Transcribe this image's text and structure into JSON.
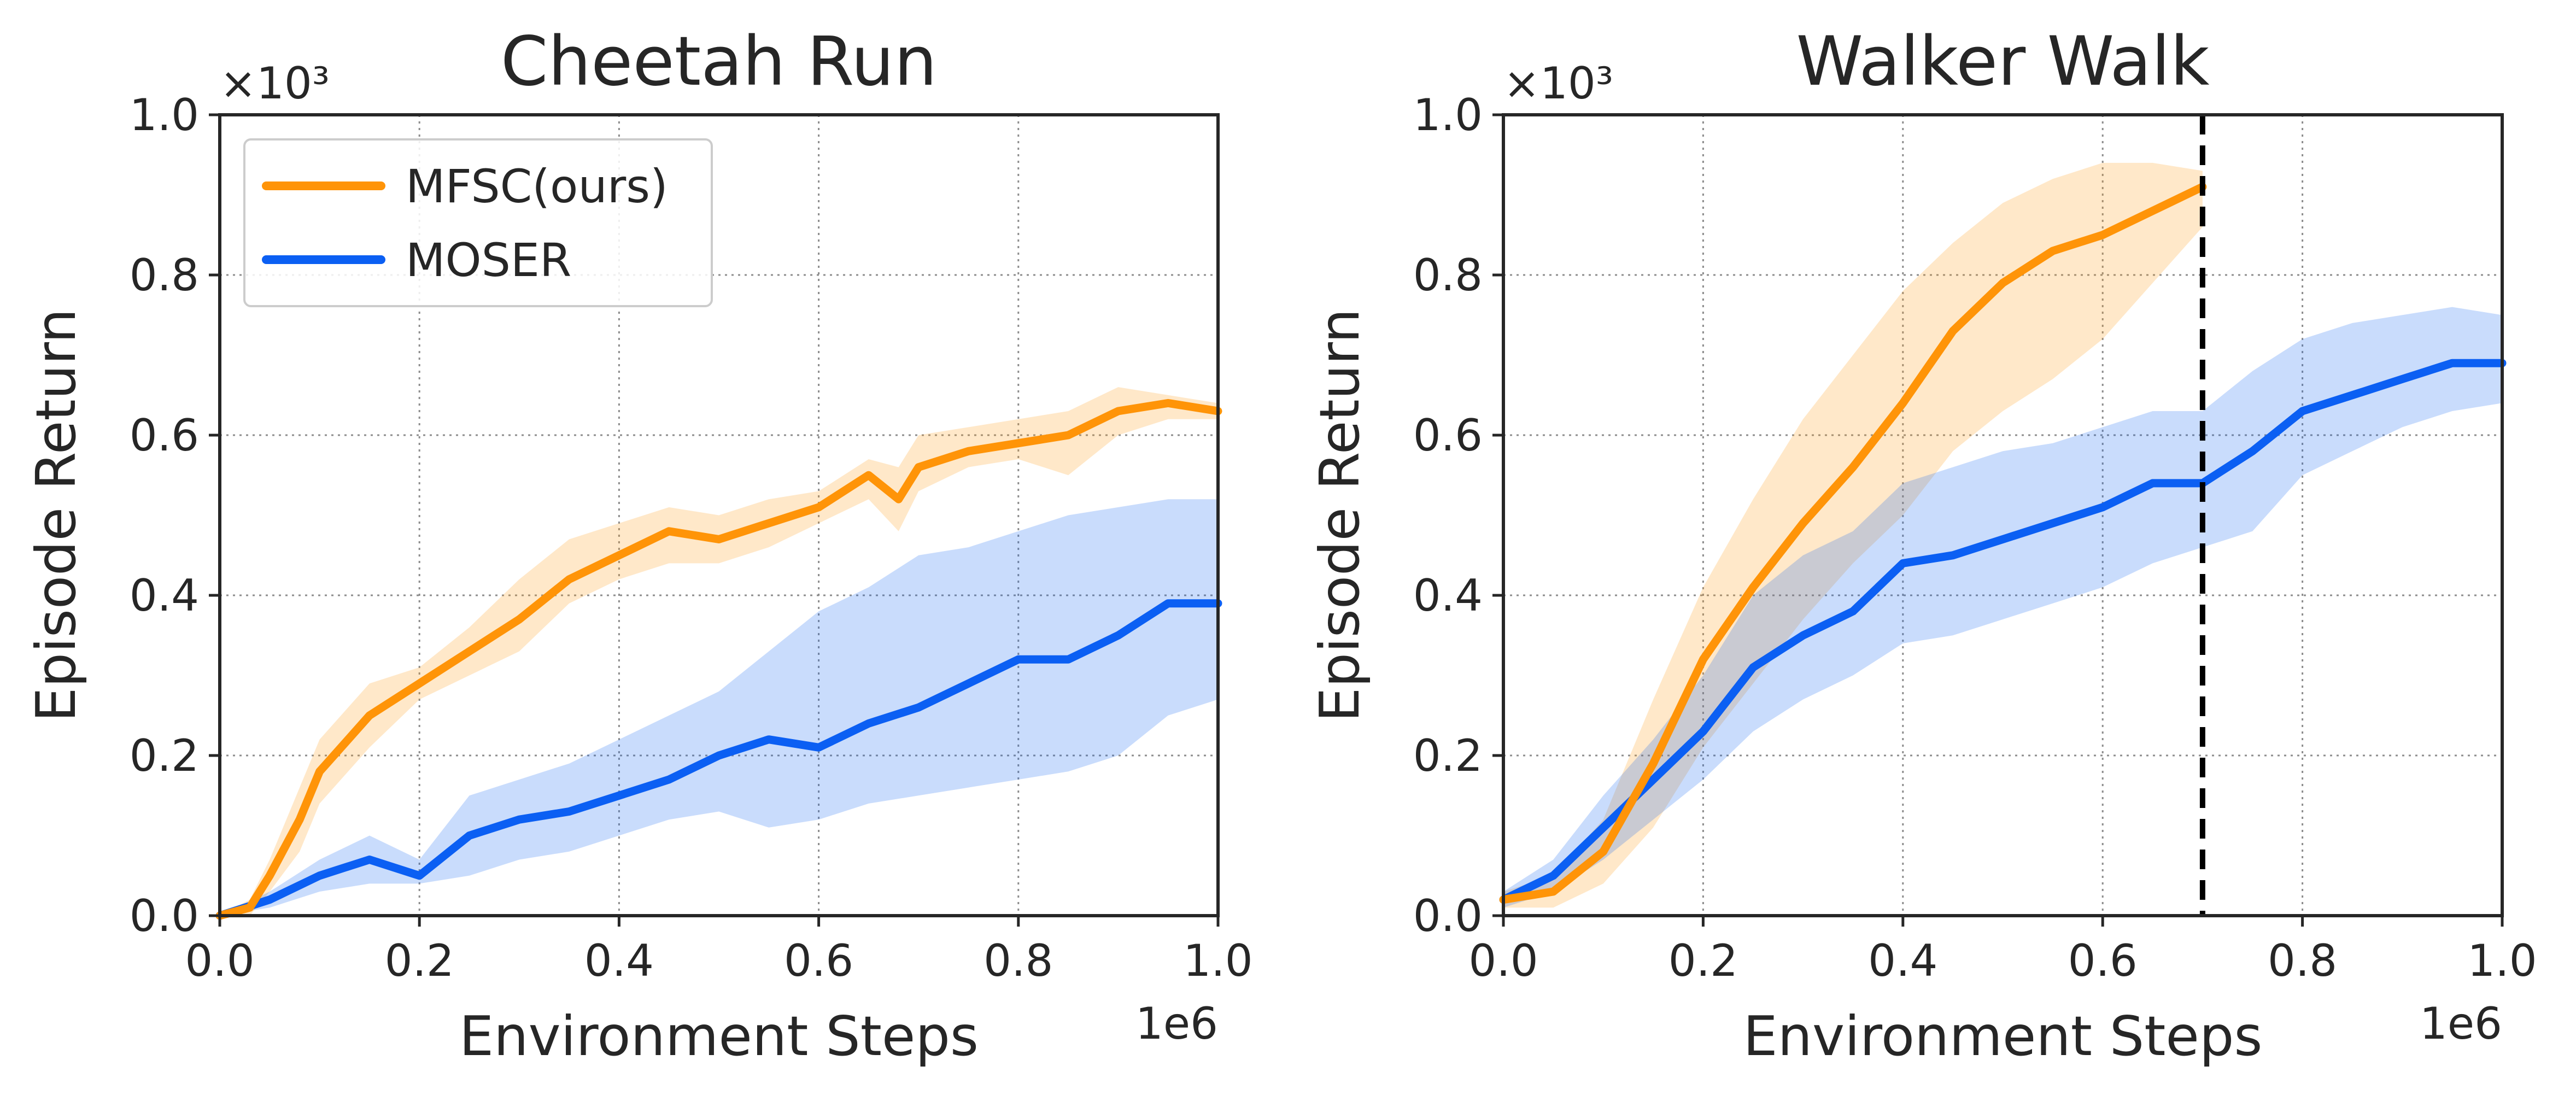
{
  "chart_data": [
    {
      "type": "line",
      "title": "Cheetah Run",
      "xlabel": "Environment Steps",
      "ylabel": "Episode Return",
      "x_multiplier": "1e6",
      "y_multiplier": "×10³",
      "xlim": [
        0,
        1.0
      ],
      "ylim": [
        0,
        1.0
      ],
      "xticks": [
        "0.0",
        "0.2",
        "0.4",
        "0.6",
        "0.8",
        "1.0"
      ],
      "yticks": [
        "0.0",
        "0.2",
        "0.4",
        "0.6",
        "0.8",
        "1.0"
      ],
      "grid": true,
      "legend": {
        "position": "top-left",
        "entries": [
          "MFSC(ours)",
          "MOSER"
        ]
      },
      "series": [
        {
          "name": "MFSC(ours)",
          "color": "#ff9408",
          "x": [
            0.0,
            0.03,
            0.05,
            0.08,
            0.1,
            0.15,
            0.2,
            0.25,
            0.3,
            0.35,
            0.4,
            0.45,
            0.5,
            0.55,
            0.6,
            0.65,
            0.68,
            0.7,
            0.75,
            0.8,
            0.85,
            0.9,
            0.95,
            1.0
          ],
          "y": [
            0.0,
            0.01,
            0.05,
            0.12,
            0.18,
            0.25,
            0.29,
            0.33,
            0.37,
            0.42,
            0.45,
            0.48,
            0.47,
            0.49,
            0.51,
            0.55,
            0.52,
            0.56,
            0.58,
            0.59,
            0.6,
            0.63,
            0.64,
            0.63
          ],
          "lower": [
            0.0,
            0.0,
            0.03,
            0.08,
            0.14,
            0.21,
            0.27,
            0.3,
            0.33,
            0.39,
            0.42,
            0.44,
            0.44,
            0.46,
            0.49,
            0.52,
            0.48,
            0.53,
            0.56,
            0.57,
            0.55,
            0.6,
            0.62,
            0.62
          ],
          "upper": [
            0.0,
            0.02,
            0.07,
            0.16,
            0.22,
            0.29,
            0.31,
            0.36,
            0.42,
            0.47,
            0.49,
            0.51,
            0.5,
            0.52,
            0.53,
            0.57,
            0.56,
            0.6,
            0.61,
            0.62,
            0.63,
            0.66,
            0.65,
            0.64
          ]
        },
        {
          "name": "MOSER",
          "color": "#0b5ff3",
          "x": [
            0.0,
            0.05,
            0.1,
            0.15,
            0.2,
            0.25,
            0.3,
            0.35,
            0.4,
            0.45,
            0.5,
            0.55,
            0.6,
            0.65,
            0.7,
            0.75,
            0.8,
            0.85,
            0.9,
            0.95,
            1.0
          ],
          "y": [
            0.0,
            0.02,
            0.05,
            0.07,
            0.05,
            0.1,
            0.12,
            0.13,
            0.15,
            0.17,
            0.2,
            0.22,
            0.21,
            0.24,
            0.26,
            0.29,
            0.32,
            0.32,
            0.35,
            0.39,
            0.39
          ],
          "lower": [
            0.0,
            0.01,
            0.03,
            0.04,
            0.04,
            0.05,
            0.07,
            0.08,
            0.1,
            0.12,
            0.13,
            0.11,
            0.12,
            0.14,
            0.15,
            0.16,
            0.17,
            0.18,
            0.2,
            0.25,
            0.27
          ],
          "upper": [
            0.0,
            0.03,
            0.07,
            0.1,
            0.07,
            0.15,
            0.17,
            0.19,
            0.22,
            0.25,
            0.28,
            0.33,
            0.38,
            0.41,
            0.45,
            0.46,
            0.48,
            0.5,
            0.51,
            0.52,
            0.52
          ]
        }
      ]
    },
    {
      "type": "line",
      "title": "Walker Walk",
      "xlabel": "Environment Steps",
      "ylabel": "Episode Return",
      "x_multiplier": "1e6",
      "y_multiplier": "×10³",
      "xlim": [
        0,
        1.0
      ],
      "ylim": [
        0,
        1.0
      ],
      "xticks": [
        "0.0",
        "0.2",
        "0.4",
        "0.6",
        "0.8",
        "1.0"
      ],
      "yticks": [
        "0.0",
        "0.2",
        "0.4",
        "0.6",
        "0.8",
        "1.0"
      ],
      "grid": true,
      "vline": {
        "x": 0.7,
        "style": "dashed",
        "color": "#000000"
      },
      "series": [
        {
          "name": "MFSC(ours)",
          "color": "#ff9408",
          "x": [
            0.0,
            0.05,
            0.1,
            0.15,
            0.2,
            0.25,
            0.3,
            0.35,
            0.4,
            0.45,
            0.5,
            0.55,
            0.6,
            0.65,
            0.7
          ],
          "y": [
            0.02,
            0.03,
            0.08,
            0.19,
            0.32,
            0.41,
            0.49,
            0.56,
            0.64,
            0.73,
            0.79,
            0.83,
            0.85,
            0.88,
            0.91
          ],
          "lower": [
            0.01,
            0.01,
            0.04,
            0.11,
            0.21,
            0.29,
            0.37,
            0.44,
            0.5,
            0.58,
            0.63,
            0.67,
            0.72,
            0.79,
            0.86
          ],
          "upper": [
            0.03,
            0.05,
            0.12,
            0.27,
            0.41,
            0.52,
            0.62,
            0.7,
            0.78,
            0.84,
            0.89,
            0.92,
            0.94,
            0.94,
            0.93
          ]
        },
        {
          "name": "MOSER",
          "color": "#0b5ff3",
          "x": [
            0.0,
            0.05,
            0.1,
            0.15,
            0.2,
            0.25,
            0.3,
            0.35,
            0.4,
            0.45,
            0.5,
            0.55,
            0.6,
            0.65,
            0.7,
            0.75,
            0.8,
            0.85,
            0.9,
            0.95,
            1.0
          ],
          "y": [
            0.02,
            0.05,
            0.11,
            0.17,
            0.23,
            0.31,
            0.35,
            0.38,
            0.44,
            0.45,
            0.47,
            0.49,
            0.51,
            0.54,
            0.54,
            0.58,
            0.63,
            0.65,
            0.67,
            0.69,
            0.69
          ],
          "lower": [
            0.01,
            0.03,
            0.07,
            0.12,
            0.17,
            0.23,
            0.27,
            0.3,
            0.34,
            0.35,
            0.37,
            0.39,
            0.41,
            0.44,
            0.46,
            0.48,
            0.55,
            0.58,
            0.61,
            0.63,
            0.64
          ],
          "upper": [
            0.03,
            0.07,
            0.15,
            0.22,
            0.3,
            0.4,
            0.45,
            0.48,
            0.54,
            0.56,
            0.58,
            0.59,
            0.61,
            0.63,
            0.63,
            0.68,
            0.72,
            0.74,
            0.75,
            0.76,
            0.75
          ]
        }
      ]
    }
  ]
}
